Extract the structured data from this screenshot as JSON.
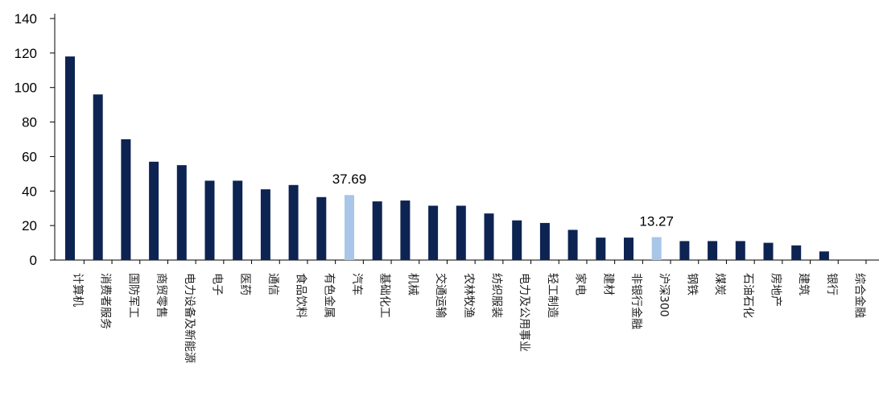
{
  "chart_data": {
    "type": "bar",
    "title": "",
    "xlabel": "",
    "ylabel": "",
    "ylim": [
      0,
      140
    ],
    "yticks": [
      0,
      20,
      40,
      60,
      80,
      100,
      120,
      140
    ],
    "grid": false,
    "legend": "none",
    "colors": {
      "default": "#0d2452",
      "highlight": "#a9c6e8"
    },
    "categories": [
      "计算机",
      "消费者服务",
      "国防军工",
      "商贸零售",
      "电力设备及新能源",
      "电子",
      "医药",
      "通信",
      "食品饮料",
      "有色金属",
      "汽车",
      "基础化工",
      "机械",
      "交通运输",
      "农林牧渔",
      "纺织服装",
      "电力及公用事业",
      "轻工制造",
      "家电",
      "建材",
      "非银行金融",
      "沪深300",
      "钢铁",
      "煤炭",
      "石油石化",
      "房地产",
      "建筑",
      "银行",
      "综合金融"
    ],
    "values": [
      118,
      96,
      70,
      57,
      55,
      46,
      46,
      41,
      43.5,
      36.5,
      37.69,
      34,
      34.5,
      31.5,
      31.5,
      27,
      23,
      21.5,
      17.5,
      13,
      13,
      13.27,
      11,
      11,
      11,
      10,
      8.5,
      5,
      0
    ],
    "highlighted": [
      "汽车",
      "沪深300"
    ],
    "data_labels": [
      {
        "category": "汽车",
        "text": "37.69"
      },
      {
        "category": "沪深300",
        "text": "13.27"
      }
    ]
  }
}
